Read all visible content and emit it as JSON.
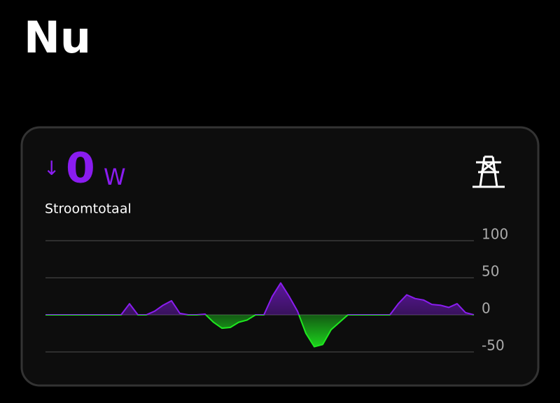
{
  "header": {
    "title": "Nu"
  },
  "card": {
    "arrow": "↓",
    "value": "0",
    "unit": "W",
    "label": "Stroomtotaal"
  },
  "chart_data": {
    "type": "area",
    "ylim": [
      -50,
      100
    ],
    "yticks": [
      100,
      50,
      0,
      -50
    ],
    "grid": true,
    "series": [
      {
        "color": "#8a1cf0",
        "negative_color": "#1ee81e",
        "values": [
          0,
          0,
          0,
          0,
          0,
          0,
          0,
          0,
          0,
          0,
          15,
          0,
          0,
          5,
          13,
          19,
          2,
          0,
          0,
          1,
          -10,
          -18,
          -17,
          -10,
          -7,
          0,
          0,
          25,
          43,
          25,
          5,
          -25,
          -43,
          -40,
          -20,
          -10,
          0,
          0,
          0,
          0,
          0,
          0,
          15,
          27,
          22,
          20,
          14,
          13,
          10,
          15,
          3,
          0
        ]
      }
    ]
  }
}
